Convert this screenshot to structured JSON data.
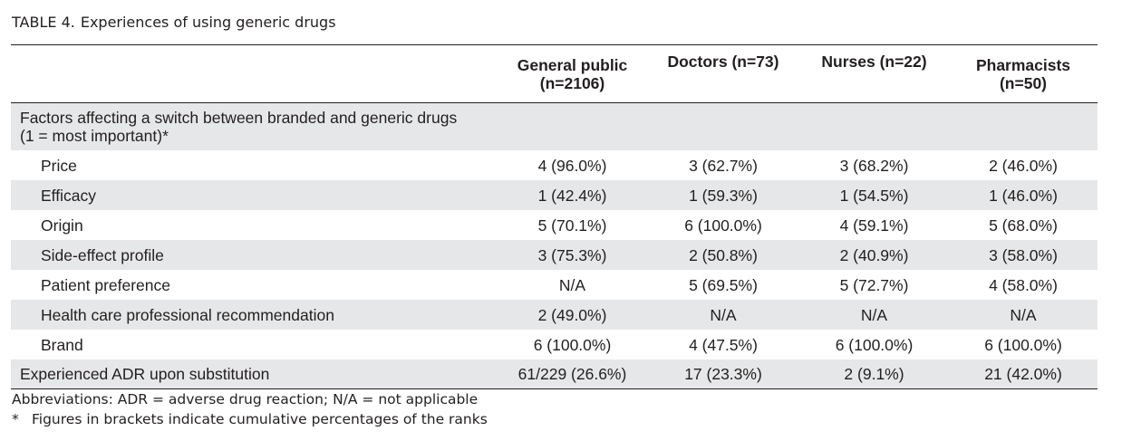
{
  "table_caption": {
    "label": "TABLE 4.",
    "title": "Experiences of using generic drugs"
  },
  "columns": [
    {
      "line1": "General public",
      "line2": "(n=2106)"
    },
    {
      "line1": "Doctors (n=73)",
      "line2": ""
    },
    {
      "line1": "Nurses (n=22)",
      "line2": ""
    },
    {
      "line1": "Pharmacists",
      "line2": "(n=50)"
    }
  ],
  "section_header": {
    "line1": "Factors affecting a switch between branded and generic drugs",
    "line2": "(1 = most important)*"
  },
  "rows": [
    {
      "label": "Price",
      "values": [
        "4 (96.0%)",
        "3 (62.7%)",
        "3 (68.2%)",
        "2 (46.0%)"
      ]
    },
    {
      "label": "Efficacy",
      "values": [
        "1 (42.4%)",
        "1 (59.3%)",
        "1 (54.5%)",
        "1 (46.0%)"
      ]
    },
    {
      "label": "Origin",
      "values": [
        "5 (70.1%)",
        "6 (100.0%)",
        "4 (59.1%)",
        "5 (68.0%)"
      ]
    },
    {
      "label": "Side-effect profile",
      "values": [
        "3 (75.3%)",
        "2 (50.8%)",
        "2 (40.9%)",
        "3 (58.0%)"
      ]
    },
    {
      "label": "Patient preference",
      "values": [
        "N/A",
        "5 (69.5%)",
        "5 (72.7%)",
        "4 (58.0%)"
      ]
    },
    {
      "label": "Health care professional recommendation",
      "values": [
        "2 (49.0%)",
        "N/A",
        "N/A",
        "N/A"
      ]
    },
    {
      "label": "Brand",
      "values": [
        "6 (100.0%)",
        "4 (47.5%)",
        "6 (100.0%)",
        "6 (100.0%)"
      ]
    }
  ],
  "adr_row": {
    "label": "Experienced ADR upon substitution",
    "values": [
      "61/229 (26.6%)",
      "17 (23.3%)",
      "2 (9.1%)",
      "21 (42.0%)"
    ]
  },
  "footnotes": {
    "abbreviations": "Abbreviations: ADR = adverse drug reaction; N/A = not applicable",
    "star_marker": "*",
    "star_note": "Figures in brackets indicate cumulative percentages of the ranks"
  },
  "colors": {
    "text": "#231f20",
    "shaded_row": "#e6e7e8",
    "rule": "#231f20"
  }
}
